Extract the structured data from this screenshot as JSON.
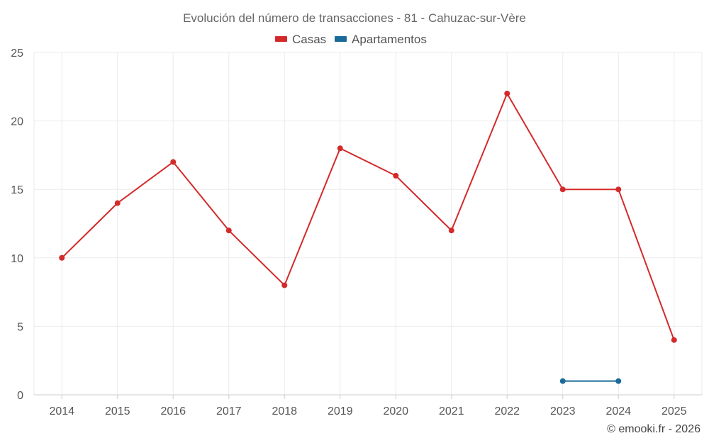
{
  "chart_data": {
    "type": "line",
    "title": "Evolución del número de transacciones - 81 - Cahuzac-sur-Vère",
    "x": [
      "2014",
      "2015",
      "2016",
      "2017",
      "2018",
      "2019",
      "2020",
      "2021",
      "2022",
      "2023",
      "2024",
      "2025"
    ],
    "series": [
      {
        "name": "Casas",
        "color": "#d42a2a",
        "values": [
          10,
          14,
          17,
          12,
          8,
          18,
          16,
          12,
          22,
          15,
          15,
          4
        ]
      },
      {
        "name": "Apartamentos",
        "color": "#1a6a9a",
        "values": [
          null,
          null,
          null,
          null,
          null,
          null,
          null,
          null,
          null,
          1,
          1,
          null
        ]
      }
    ],
    "ylim": [
      0,
      25
    ],
    "yticks": [
      0,
      5,
      10,
      15,
      20,
      25
    ],
    "xlabel": "",
    "ylabel": "",
    "grid": true,
    "legend_position": "top-center"
  },
  "credit": "© emooki.fr - 2026"
}
